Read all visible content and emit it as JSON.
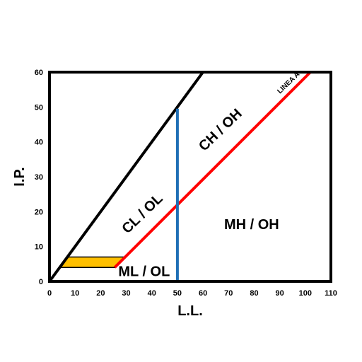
{
  "chart_data": {
    "type": "line",
    "xlabel": "L.L.",
    "ylabel": "I.P.",
    "xlim": [
      0,
      110
    ],
    "ylim": [
      0,
      60
    ],
    "x_ticks": [
      0,
      10,
      20,
      30,
      40,
      50,
      60,
      70,
      80,
      90,
      100,
      110
    ],
    "y_ticks": [
      0,
      10,
      20,
      30,
      40,
      50,
      60
    ],
    "grid": false,
    "lines": [
      {
        "name": "",
        "color": "#000000",
        "points": [
          [
            0,
            0
          ],
          [
            60,
            60
          ]
        ]
      },
      {
        "name": "LINEA A",
        "color": "#ff0000",
        "points": [
          [
            25.5,
            4
          ],
          [
            102,
            60
          ]
        ]
      },
      {
        "name": "",
        "color": "#1f6fb5",
        "points": [
          [
            50,
            0
          ],
          [
            50,
            49.5
          ]
        ]
      }
    ],
    "band": {
      "color": "#ffc000",
      "points": [
        [
          4,
          4
        ],
        [
          25.5,
          4
        ],
        [
          29.6,
          7
        ],
        [
          7,
          7
        ]
      ]
    },
    "annotations": [
      {
        "text": "LINEA A",
        "x": 94,
        "y": 56.5,
        "rotate": -44,
        "cls": "small-label"
      },
      {
        "text": "CH / OH",
        "x": 68,
        "y": 42.5,
        "rotate": -44,
        "cls": "region"
      },
      {
        "text": "CL / OL",
        "x": 37.5,
        "y": 18.5,
        "rotate": -44,
        "cls": "region"
      },
      {
        "text": "MH / OH",
        "x": 79,
        "y": 15,
        "rotate": 0,
        "cls": "region"
      },
      {
        "text": "ML / OL",
        "x": 37,
        "y": 1.5,
        "rotate": 0,
        "cls": "region"
      }
    ]
  }
}
